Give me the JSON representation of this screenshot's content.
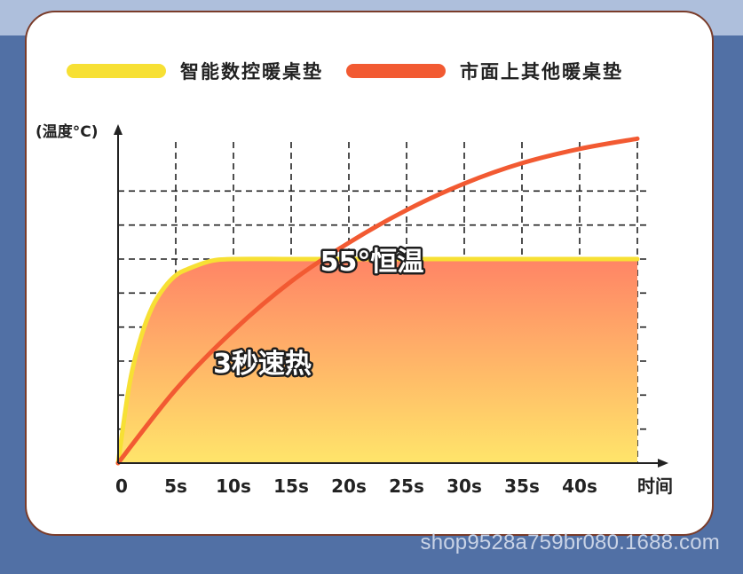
{
  "legend": [
    {
      "label": "智能数控暖桌垫",
      "color": "#f7e034"
    },
    {
      "label": "市面上其他暖桌垫",
      "color": "#f25a32"
    }
  ],
  "chart_data": {
    "type": "line",
    "ylabel": "(温度°C)",
    "xlabel": "时间",
    "x_ticks": [
      "0",
      "5s",
      "10s",
      "15s",
      "20s",
      "25s",
      "30s",
      "35s",
      "40s"
    ],
    "xlim": [
      0,
      45
    ],
    "grid": true,
    "series": [
      {
        "name": "智能数控暖桌垫",
        "color": "#f7e034",
        "fill": true,
        "x": [
          0,
          1,
          2,
          3,
          4,
          5,
          6,
          8,
          10,
          15,
          20,
          25,
          30,
          35,
          40,
          45
        ],
        "y_fraction": [
          0,
          0.39,
          0.62,
          0.77,
          0.86,
          0.92,
          0.95,
          0.99,
          1,
          1,
          1,
          1,
          1,
          1,
          1,
          1
        ]
      },
      {
        "name": "市面上其他暖桌垫",
        "color": "#f25a32",
        "fill": false,
        "x": [
          0,
          5,
          10,
          15,
          20,
          25,
          30,
          35,
          40,
          45
        ],
        "y_fraction": [
          0,
          0.36,
          0.65,
          0.89,
          1.08,
          1.24,
          1.37,
          1.47,
          1.54,
          1.59
        ]
      }
    ],
    "annotations": [
      {
        "text": "55°恒温",
        "x": 22,
        "y_fraction": 0.98
      },
      {
        "text": "3秒速热",
        "x": 12.5,
        "y_fraction": 0.48
      }
    ]
  },
  "watermark": "shop9528a759br080.1688.com"
}
